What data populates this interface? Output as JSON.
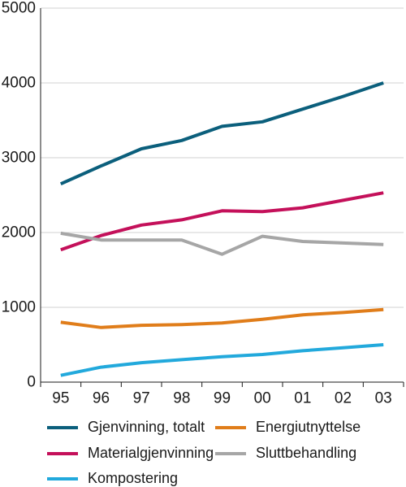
{
  "chart_data": {
    "type": "line",
    "title": "",
    "xlabel": "",
    "ylabel": "",
    "x": [
      "95",
      "96",
      "97",
      "98",
      "99",
      "00",
      "01",
      "02",
      "03"
    ],
    "ylim": [
      0,
      5000
    ],
    "yticks": [
      "0",
      "1000",
      "2000",
      "3000",
      "4000",
      "5000"
    ],
    "grid": "horizontal",
    "legend_position": "bottom",
    "series": [
      {
        "name": "Gjenvinning, totalt",
        "color": "#0b5f7c",
        "values": [
          2650,
          2890,
          3120,
          3230,
          3420,
          3480,
          3650,
          3820,
          4000
        ]
      },
      {
        "name": "Materialgjenvinning",
        "color": "#c4105a",
        "values": [
          1770,
          1960,
          2100,
          2170,
          2290,
          2280,
          2330,
          2430,
          2530
        ]
      },
      {
        "name": "Kompostering",
        "color": "#22a9dc",
        "values": [
          90,
          200,
          260,
          300,
          340,
          370,
          420,
          460,
          500
        ]
      },
      {
        "name": "Energiutnyttelse",
        "color": "#e07d1a",
        "values": [
          800,
          730,
          760,
          770,
          790,
          840,
          900,
          930,
          970
        ]
      },
      {
        "name": "Sluttbehandling",
        "color": "#a6a6a6",
        "values": [
          1990,
          1900,
          1900,
          1900,
          1710,
          1950,
          1880,
          1860,
          1840
        ]
      }
    ]
  }
}
